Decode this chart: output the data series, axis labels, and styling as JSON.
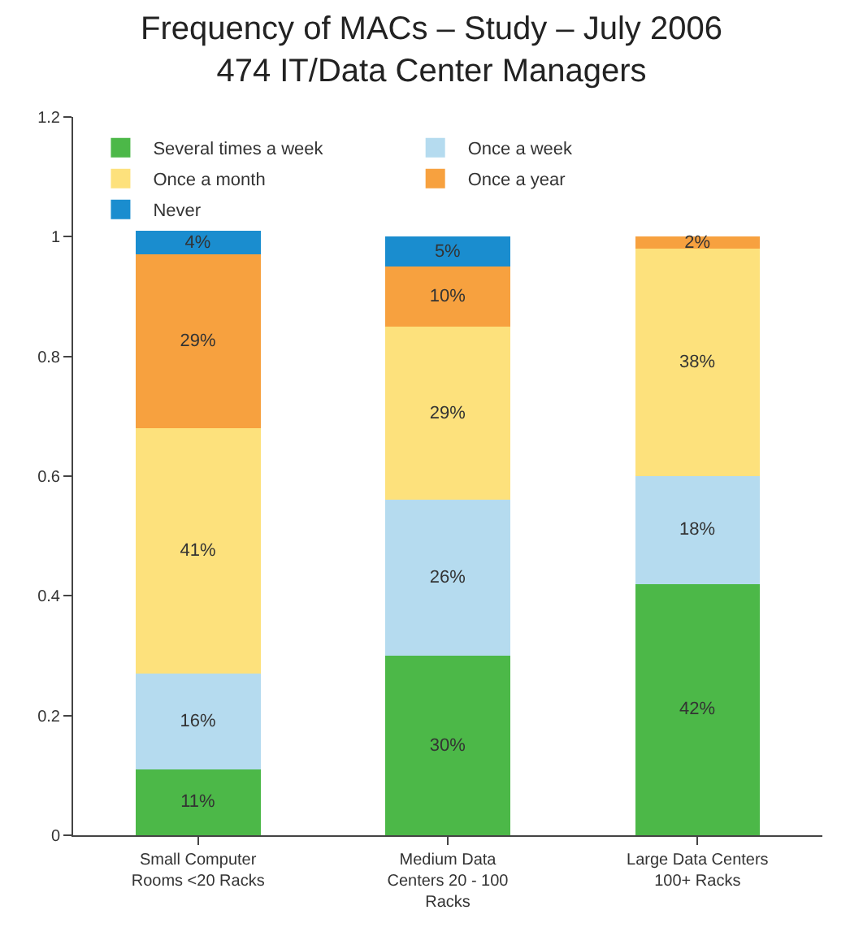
{
  "chart_data": {
    "type": "bar",
    "stacked": true,
    "title": "Frequency of MACs – Study – July 2006\n474 IT/Data Center Managers",
    "categories": [
      "Small Computer Rooms <20 Racks",
      "Medium Data Centers 20 - 100 Racks",
      "Large Data Centers 100+ Racks"
    ],
    "series": [
      {
        "name": "Several times a week",
        "color": "#4cb848",
        "values": [
          0.11,
          0.3,
          0.42
        ],
        "value_labels": [
          "11%",
          "30%",
          "42%"
        ]
      },
      {
        "name": "Once a week",
        "color": "#b5dbef",
        "values": [
          0.16,
          0.26,
          0.18
        ],
        "value_labels": [
          "16%",
          "26%",
          "18%"
        ]
      },
      {
        "name": "Once a month",
        "color": "#fde17c",
        "values": [
          0.41,
          0.29,
          0.38
        ],
        "value_labels": [
          "41%",
          "29%",
          "38%"
        ]
      },
      {
        "name": "Once a year",
        "color": "#f7a13f",
        "values": [
          0.29,
          0.1,
          0.02
        ],
        "value_labels": [
          "29%",
          "10%",
          "2%"
        ]
      },
      {
        "name": "Never",
        "color": "#1a8dcf",
        "values": [
          0.04,
          0.05,
          null
        ],
        "value_labels": [
          "4%",
          "5%",
          null
        ]
      }
    ],
    "ylim": [
      0,
      1.2
    ],
    "yticks": [
      0,
      0.2,
      0.4,
      0.6,
      0.8,
      1,
      1.2
    ],
    "legend": "top left"
  }
}
